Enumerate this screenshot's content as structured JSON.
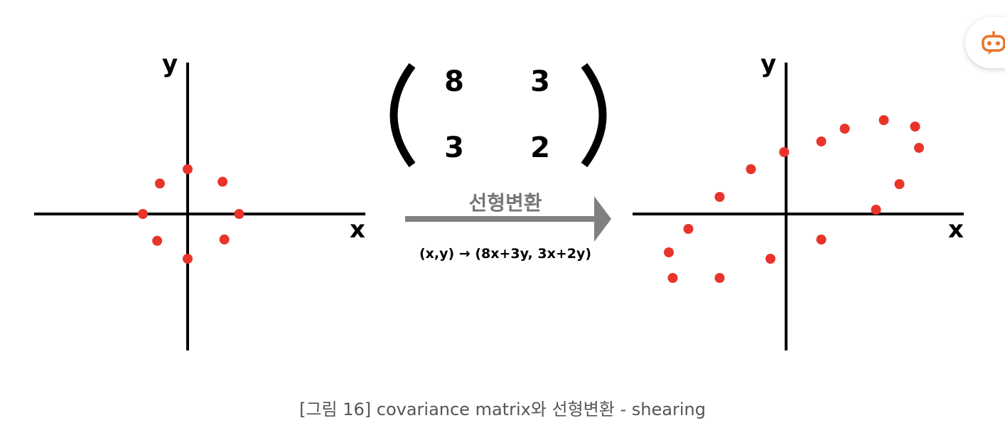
{
  "left_plot": {
    "x_label": "x",
    "y_label": "y",
    "points": [
      [
        0,
        1
      ],
      [
        -0.62,
        0.68
      ],
      [
        0.78,
        0.72
      ],
      [
        -1,
        0
      ],
      [
        1.15,
        0
      ],
      [
        -0.68,
        -0.6
      ],
      [
        0.82,
        -0.57
      ],
      [
        0,
        -1
      ]
    ]
  },
  "matrix": {
    "a11": "8",
    "a12": "3",
    "a21": "3",
    "a22": "2"
  },
  "transform": {
    "label": "선형변환",
    "mapping": "(x,y) → (8x+3y, 3x+2y)"
  },
  "right_plot": {
    "x_label": "x",
    "y_label": "y",
    "points": [
      [
        1.5,
        2.0
      ],
      [
        2.5,
        2.2
      ],
      [
        3.3,
        2.05
      ],
      [
        0.9,
        1.7
      ],
      [
        3.4,
        1.55
      ],
      [
        -0.05,
        1.45
      ],
      [
        -0.9,
        1.05
      ],
      [
        2.9,
        0.7
      ],
      [
        -1.7,
        0.4
      ],
      [
        2.3,
        0.1
      ],
      [
        -2.5,
        -0.35
      ],
      [
        0.9,
        -0.6
      ],
      [
        -3.0,
        -0.9
      ],
      [
        -0.4,
        -1.05
      ],
      [
        -2.9,
        -1.5
      ],
      [
        -1.7,
        -1.5
      ]
    ]
  },
  "caption": "[그림 16] covariance matrix와 선형변환 - shearing",
  "colors": {
    "point": "#e8342a",
    "arrow": "#808080",
    "assistant_icon": "#e8742a"
  }
}
